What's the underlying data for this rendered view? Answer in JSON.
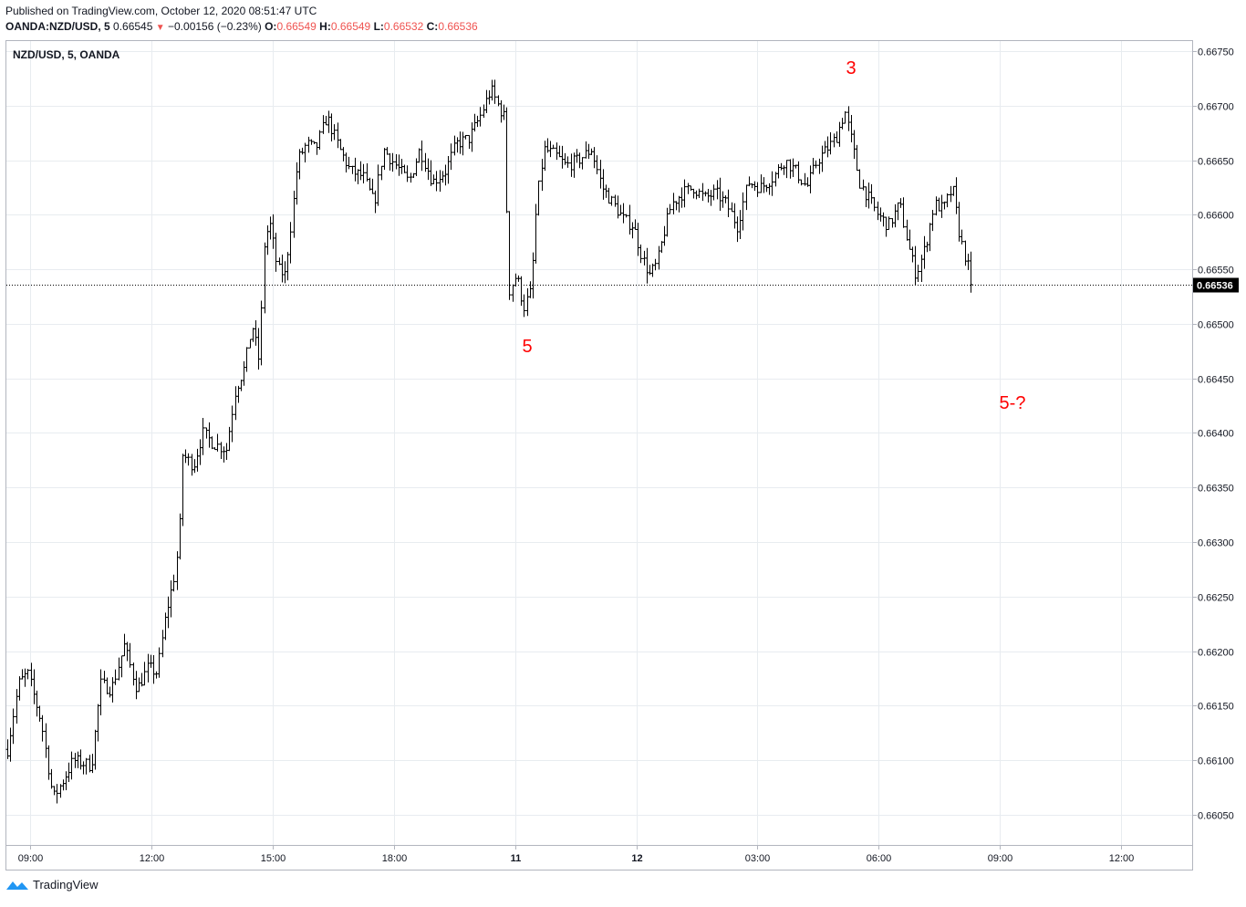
{
  "header": {
    "published": "Published on TradingView.com, October 12, 2020 08:51:47 UTC",
    "symbol": "OANDA:NZD/USD, 5",
    "last": "0.66545",
    "change": "−0.00156 (−0.23%)",
    "o_label": "O:",
    "o_value": "0.66549",
    "h_label": "H:",
    "h_value": "0.66549",
    "l_label": "L:",
    "l_value": "0.66532",
    "c_label": "C:",
    "c_value": "0.66536"
  },
  "footer": {
    "brand": "TradingView"
  },
  "colors": {
    "price": "#000000",
    "grid": "#e8ecf0",
    "annotation": "#ff0000",
    "down": "#ef5350"
  },
  "chart_data": {
    "type": "ohlc",
    "title": "NZD/USD, 5, OANDA",
    "xlabel": "",
    "ylabel": "",
    "ylim": [
      0.6603,
      0.6676
    ],
    "grid": true,
    "y_ticks": [
      "0.66050",
      "0.66100",
      "0.66150",
      "0.66200",
      "0.66250",
      "0.66300",
      "0.66350",
      "0.66400",
      "0.66450",
      "0.66500",
      "0.66550",
      "0.66600",
      "0.66650",
      "0.66700",
      "0.66750"
    ],
    "x_ticks": [
      "09:00",
      "12:00",
      "15:00",
      "18:00",
      "11",
      "12",
      "03:00",
      "06:00",
      "09:00",
      "12:00"
    ],
    "x_tick_bold": [
      false,
      false,
      false,
      false,
      true,
      true,
      false,
      false,
      false,
      false
    ],
    "last_price": 0.66536,
    "last_price_label": "0.66536",
    "annotations": [
      {
        "text": "3",
        "x": 933,
        "price": 0.66735
      },
      {
        "text": "5",
        "x": 578,
        "price": 0.6648
      },
      {
        "text": "5-?",
        "x": 1110,
        "price": 0.66428
      }
    ],
    "path": [
      [
        8,
        0.6611
      ],
      [
        20,
        0.6617
      ],
      [
        30,
        0.6618
      ],
      [
        45,
        0.66135
      ],
      [
        58,
        0.66065
      ],
      [
        68,
        0.6608
      ],
      [
        80,
        0.661
      ],
      [
        100,
        0.66095
      ],
      [
        110,
        0.6617
      ],
      [
        122,
        0.66165
      ],
      [
        136,
        0.66205
      ],
      [
        150,
        0.66165
      ],
      [
        162,
        0.66185
      ],
      [
        172,
        0.6618
      ],
      [
        182,
        0.66235
      ],
      [
        190,
        0.66265
      ],
      [
        196,
        0.663
      ],
      [
        200,
        0.6638
      ],
      [
        212,
        0.6637
      ],
      [
        222,
        0.664
      ],
      [
        234,
        0.6639
      ],
      [
        248,
        0.66385
      ],
      [
        258,
        0.6644
      ],
      [
        268,
        0.6646
      ],
      [
        276,
        0.665
      ],
      [
        284,
        0.66465
      ],
      [
        290,
        0.6658
      ],
      [
        296,
        0.6659
      ],
      [
        304,
        0.6655
      ],
      [
        312,
        0.66545
      ],
      [
        320,
        0.666
      ],
      [
        326,
        0.6665
      ],
      [
        336,
        0.66665
      ],
      [
        346,
        0.6666
      ],
      [
        358,
        0.6669
      ],
      [
        372,
        0.6666
      ],
      [
        384,
        0.6664
      ],
      [
        398,
        0.66635
      ],
      [
        410,
        0.6661
      ],
      [
        420,
        0.6666
      ],
      [
        434,
        0.66645
      ],
      [
        448,
        0.6663
      ],
      [
        460,
        0.6666
      ],
      [
        474,
        0.6663
      ],
      [
        488,
        0.6664
      ],
      [
        500,
        0.66665
      ],
      [
        514,
        0.6667
      ],
      [
        526,
        0.6669
      ],
      [
        538,
        0.66715
      ],
      [
        546,
        0.667
      ],
      [
        552,
        0.6669
      ],
      [
        558,
        0.6653
      ],
      [
        566,
        0.66545
      ],
      [
        574,
        0.66515
      ],
      [
        582,
        0.6653
      ],
      [
        588,
        0.6661
      ],
      [
        596,
        0.6666
      ],
      [
        608,
        0.66655
      ],
      [
        620,
        0.66645
      ],
      [
        634,
        0.6665
      ],
      [
        648,
        0.6666
      ],
      [
        660,
        0.66625
      ],
      [
        672,
        0.6661
      ],
      [
        684,
        0.66595
      ],
      [
        694,
        0.6659
      ],
      [
        704,
        0.6656
      ],
      [
        712,
        0.66545
      ],
      [
        720,
        0.66555
      ],
      [
        728,
        0.66585
      ],
      [
        736,
        0.6661
      ],
      [
        748,
        0.6662
      ],
      [
        760,
        0.66625
      ],
      [
        772,
        0.66615
      ],
      [
        784,
        0.6662
      ],
      [
        796,
        0.6661
      ],
      [
        808,
        0.6659
      ],
      [
        820,
        0.6663
      ],
      [
        834,
        0.66625
      ],
      [
        848,
        0.66635
      ],
      [
        860,
        0.6665
      ],
      [
        872,
        0.6664
      ],
      [
        884,
        0.66625
      ],
      [
        896,
        0.6665
      ],
      [
        906,
        0.6666
      ],
      [
        916,
        0.6667
      ],
      [
        926,
        0.66695
      ],
      [
        934,
        0.66665
      ],
      [
        942,
        0.6663
      ],
      [
        952,
        0.66615
      ],
      [
        962,
        0.666
      ],
      [
        974,
        0.6659
      ],
      [
        986,
        0.6661
      ],
      [
        996,
        0.6657
      ],
      [
        1004,
        0.66545
      ],
      [
        1014,
        0.6657
      ],
      [
        1024,
        0.6661
      ],
      [
        1034,
        0.66605
      ],
      [
        1044,
        0.66625
      ],
      [
        1052,
        0.6658
      ],
      [
        1060,
        0.66555
      ],
      [
        1066,
        0.66536
      ]
    ]
  }
}
